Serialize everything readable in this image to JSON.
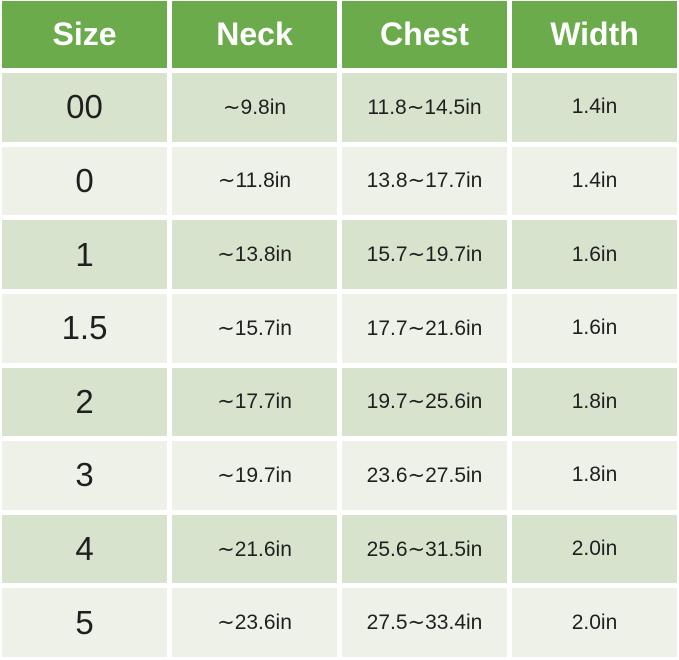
{
  "colors": {
    "header_bg": "#6cab4c",
    "header_text": "#ffffff",
    "row_green": "#d7e3cd",
    "row_white": "#edf1e8",
    "cell_gap": "#ffffff",
    "body_text": "#1f1f1f"
  },
  "chart_data": {
    "type": "table",
    "columns": [
      "Size",
      "Neck",
      "Chest",
      "Width"
    ],
    "rows": [
      [
        "00",
        "∼9.8in",
        "11.8∼14.5in",
        "1.4in"
      ],
      [
        "0",
        "∼11.8in",
        "13.8∼17.7in",
        "1.4in"
      ],
      [
        "1",
        "∼13.8in",
        "15.7∼19.7in",
        "1.6in"
      ],
      [
        "1.5",
        "∼15.7in",
        "17.7∼21.6in",
        "1.6in"
      ],
      [
        "2",
        "∼17.7in",
        "19.7∼25.6in",
        "1.8in"
      ],
      [
        "3",
        "∼19.7in",
        "23.6∼27.5in",
        "1.8in"
      ],
      [
        "4",
        "∼21.6in",
        "25.6∼31.5in",
        "2.0in"
      ],
      [
        "5",
        "∼23.6in",
        "27.5∼33.4in",
        "2.0in"
      ]
    ],
    "unit": "in",
    "layout": "header row green, 8 body rows alternating light-green / off-white, white gutters"
  }
}
